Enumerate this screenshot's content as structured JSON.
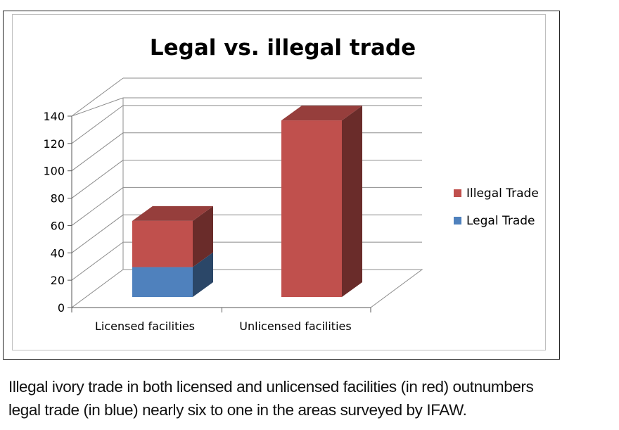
{
  "chart_data": {
    "type": "bar",
    "stacked": true,
    "three_d": true,
    "title": "Legal vs. illegal trade",
    "categories": [
      "Licensed facilities",
      "Unlicensed facilities"
    ],
    "series": [
      {
        "name": "Legal Trade",
        "values": [
          22,
          0
        ],
        "color": "#4f81bd"
      },
      {
        "name": "Illegal Trade",
        "values": [
          34,
          130
        ],
        "color": "#c0504d"
      }
    ],
    "ylim": [
      0,
      140
    ],
    "yticks": [
      "0",
      "20",
      "40",
      "60",
      "80",
      "100",
      "120",
      "140"
    ],
    "grid": true,
    "legend_position": "right"
  },
  "legend": [
    {
      "label": "Illegal Trade",
      "color": "#c0504d"
    },
    {
      "label": "Legal Trade",
      "color": "#4f81bd"
    }
  ],
  "caption": {
    "line1": "Illegal ivory trade in both licensed and unlicensed facilities (in red) outnumbers",
    "line2": "legal trade (in blue) nearly six to one in the areas surveyed by IFAW."
  }
}
